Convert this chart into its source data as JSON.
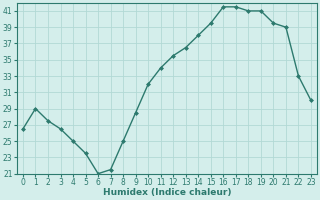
{
  "x": [
    0,
    1,
    2,
    3,
    4,
    5,
    6,
    7,
    8,
    9,
    10,
    11,
    12,
    13,
    14,
    15,
    16,
    17,
    18,
    19,
    20,
    21,
    22,
    23
  ],
  "y": [
    26.5,
    29.0,
    27.5,
    26.5,
    25.0,
    23.5,
    21.0,
    21.5,
    25.0,
    28.5,
    32.0,
    34.0,
    35.5,
    36.5,
    38.0,
    39.5,
    41.5,
    41.5,
    41.0,
    41.0,
    39.5,
    39.0,
    33.0,
    30.0
  ],
  "line_color": "#2d7a6e",
  "marker": "D",
  "marker_size": 2.0,
  "bg_color": "#d4eeeb",
  "grid_color": "#b2d9d5",
  "xlabel": "Humidex (Indice chaleur)",
  "ylim": [
    21,
    42
  ],
  "xlim": [
    -0.5,
    23.5
  ],
  "yticks": [
    21,
    23,
    25,
    27,
    29,
    31,
    33,
    35,
    37,
    39,
    41
  ],
  "xticks": [
    0,
    1,
    2,
    3,
    4,
    5,
    6,
    7,
    8,
    9,
    10,
    11,
    12,
    13,
    14,
    15,
    16,
    17,
    18,
    19,
    20,
    21,
    22,
    23
  ],
  "tick_fontsize": 5.5,
  "xlabel_fontsize": 6.5,
  "linewidth": 1.0
}
